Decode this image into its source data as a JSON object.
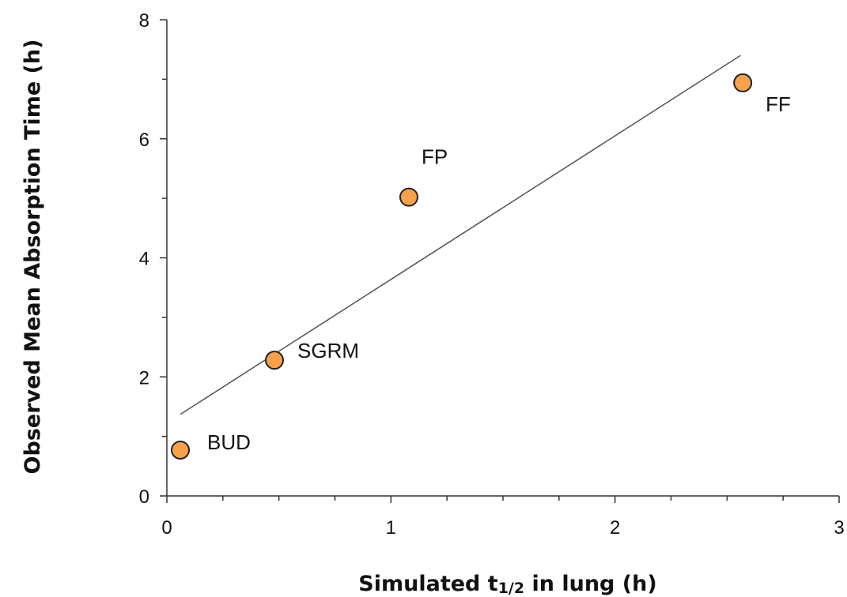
{
  "chart_data": {
    "type": "scatter",
    "xlabel_parts": [
      "Simulated t",
      "1/2",
      " in lung (h)"
    ],
    "ylabel": "Observed Mean Absorption Time (h)",
    "xlim": [
      0,
      3
    ],
    "ylim": [
      0,
      8
    ],
    "x_ticks": [
      0,
      1,
      2,
      3
    ],
    "y_ticks": [
      0,
      2,
      4,
      6,
      8
    ],
    "x_minor_step": 0.25,
    "y_minor_step": 1,
    "grid": false,
    "legend": "none",
    "marker_color": "#F7A14D",
    "marker_edge_color": "#222222",
    "trendline_color": "#555555",
    "trendline": {
      "x": [
        0.06,
        2.56
      ],
      "y": [
        1.37,
        7.4
      ]
    },
    "points": [
      {
        "label": "BUD",
        "x": 0.06,
        "y": 0.77
      },
      {
        "label": "SGRM",
        "x": 0.48,
        "y": 2.28
      },
      {
        "label": "FP",
        "x": 1.08,
        "y": 5.02
      },
      {
        "label": "FF",
        "x": 2.57,
        "y": 6.94
      }
    ]
  }
}
